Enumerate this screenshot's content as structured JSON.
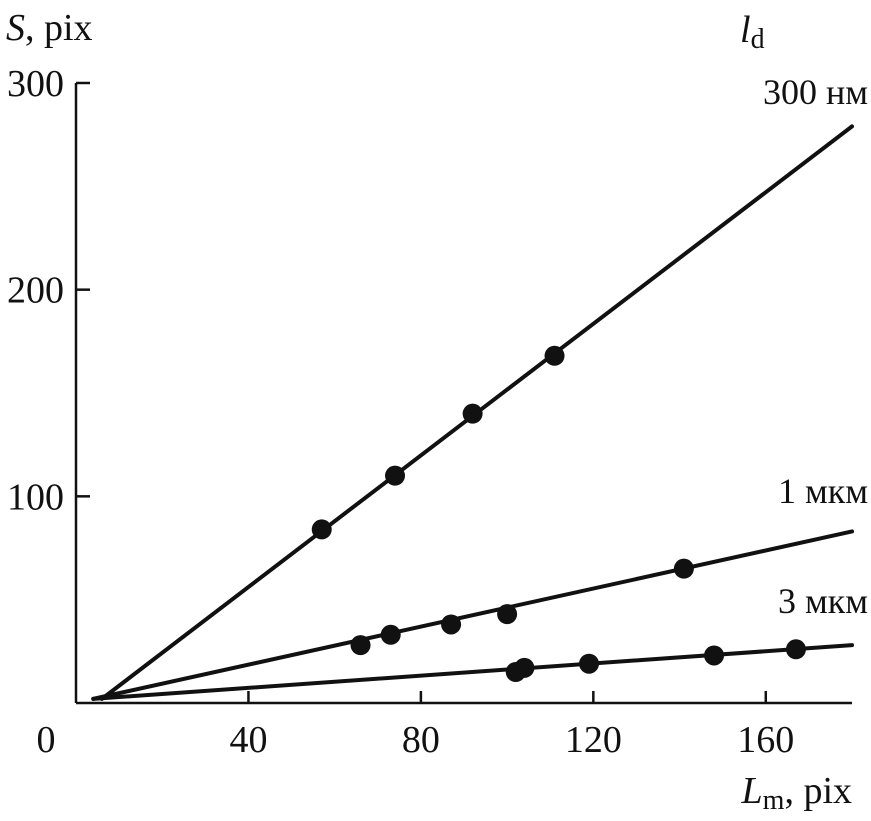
{
  "chart_data": {
    "type": "scatter",
    "title": "",
    "xlabel": {
      "var": "L",
      "sub": "m",
      "unit": ", pix"
    },
    "ylabel": {
      "var": "S",
      "unit": ", pix"
    },
    "legend_title": {
      "var": "l",
      "sub": "d"
    },
    "xlim": [
      0,
      180
    ],
    "ylim": [
      0,
      300
    ],
    "x_ticks": [
      0,
      40,
      80,
      120,
      160
    ],
    "y_ticks": [
      100,
      200,
      300
    ],
    "grid": false,
    "series": [
      {
        "name": "300 нм",
        "points": [
          [
            57,
            84
          ],
          [
            74,
            110
          ],
          [
            92,
            140
          ],
          [
            111,
            168
          ]
        ],
        "fit_line": [
          [
            6,
            2
          ],
          [
            180,
            279
          ]
        ]
      },
      {
        "name": "1 мкм",
        "points": [
          [
            66,
            28
          ],
          [
            73,
            33
          ],
          [
            87,
            38
          ],
          [
            100,
            43
          ],
          [
            141,
            65
          ]
        ],
        "fit_line": [
          [
            4,
            2
          ],
          [
            180,
            83
          ]
        ]
      },
      {
        "name": "3 мкм",
        "points": [
          [
            102,
            15
          ],
          [
            104,
            17
          ],
          [
            119,
            19
          ],
          [
            148,
            23
          ],
          [
            167,
            26
          ]
        ],
        "fit_line": [
          [
            4,
            2
          ],
          [
            180,
            28
          ]
        ]
      }
    ]
  }
}
